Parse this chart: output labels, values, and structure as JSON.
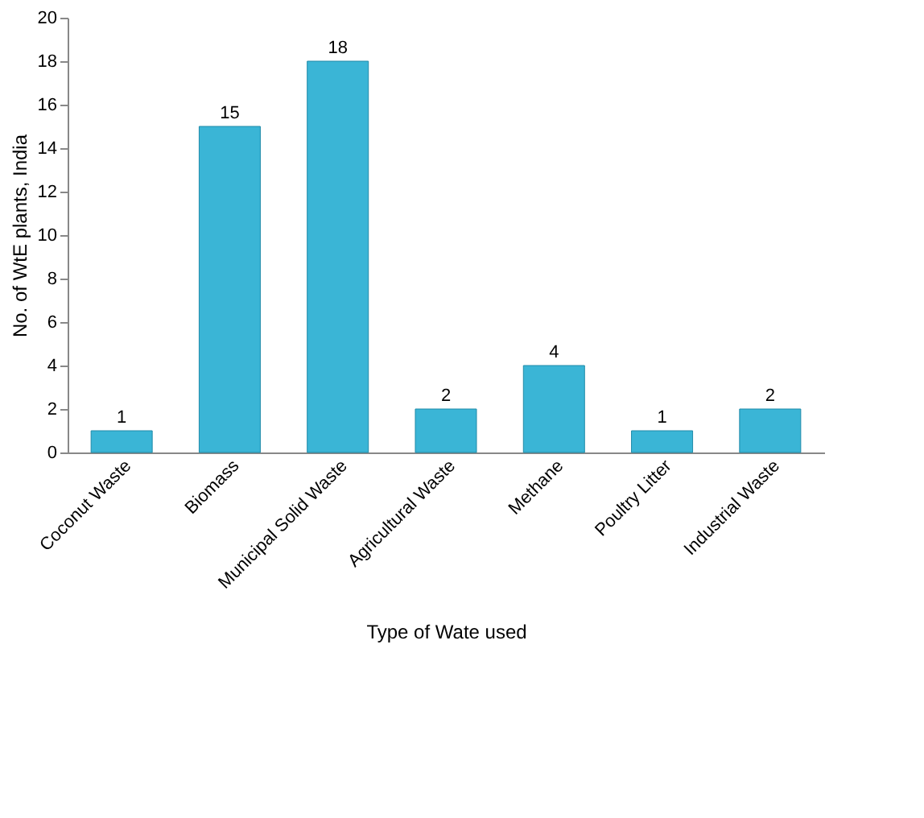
{
  "chart_data": {
    "type": "bar",
    "xlabel": "Type of Wate used",
    "ylabel": "No. of WtE plants, India",
    "categories": [
      "Coconut Waste",
      "Biomass",
      "Municipal Solid Waste",
      "Agricultural Waste",
      "Methane",
      "Poultry Litter",
      "Industrial Waste"
    ],
    "values": [
      1,
      15,
      18,
      2,
      4,
      1,
      2
    ],
    "color": "#3ab5d6",
    "ylim": [
      0,
      20
    ],
    "yticks": [
      0,
      2,
      4,
      6,
      8,
      10,
      12,
      14,
      16,
      18,
      20
    ],
    "grid": false,
    "data_labels": true
  }
}
